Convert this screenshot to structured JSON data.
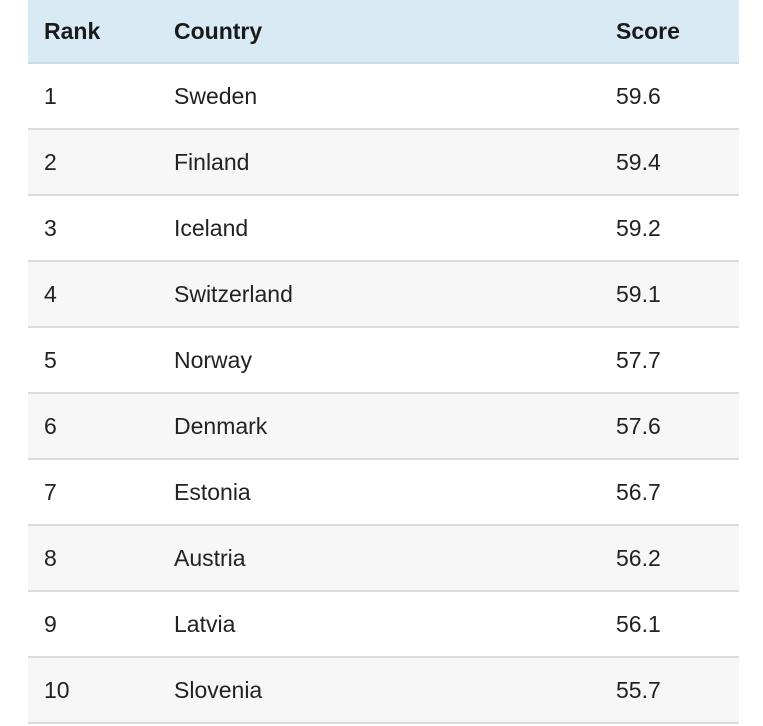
{
  "table": {
    "headers": {
      "rank": "Rank",
      "country": "Country",
      "score": "Score"
    },
    "rows": [
      {
        "rank": "1",
        "country": "Sweden",
        "score": "59.6"
      },
      {
        "rank": "2",
        "country": "Finland",
        "score": "59.4"
      },
      {
        "rank": "3",
        "country": "Iceland",
        "score": "59.2"
      },
      {
        "rank": "4",
        "country": "Switzerland",
        "score": "59.1"
      },
      {
        "rank": "5",
        "country": "Norway",
        "score": "57.7"
      },
      {
        "rank": "6",
        "country": "Denmark",
        "score": "57.6"
      },
      {
        "rank": "7",
        "country": "Estonia",
        "score": "56.7"
      },
      {
        "rank": "8",
        "country": "Austria",
        "score": "56.2"
      },
      {
        "rank": "9",
        "country": "Latvia",
        "score": "56.1"
      },
      {
        "rank": "10",
        "country": "Slovenia",
        "score": "55.7"
      }
    ]
  },
  "colors": {
    "header_background": "#d8eaf3",
    "row_alt_background": "#f7f7f7",
    "divider": "#dcdcdc"
  }
}
